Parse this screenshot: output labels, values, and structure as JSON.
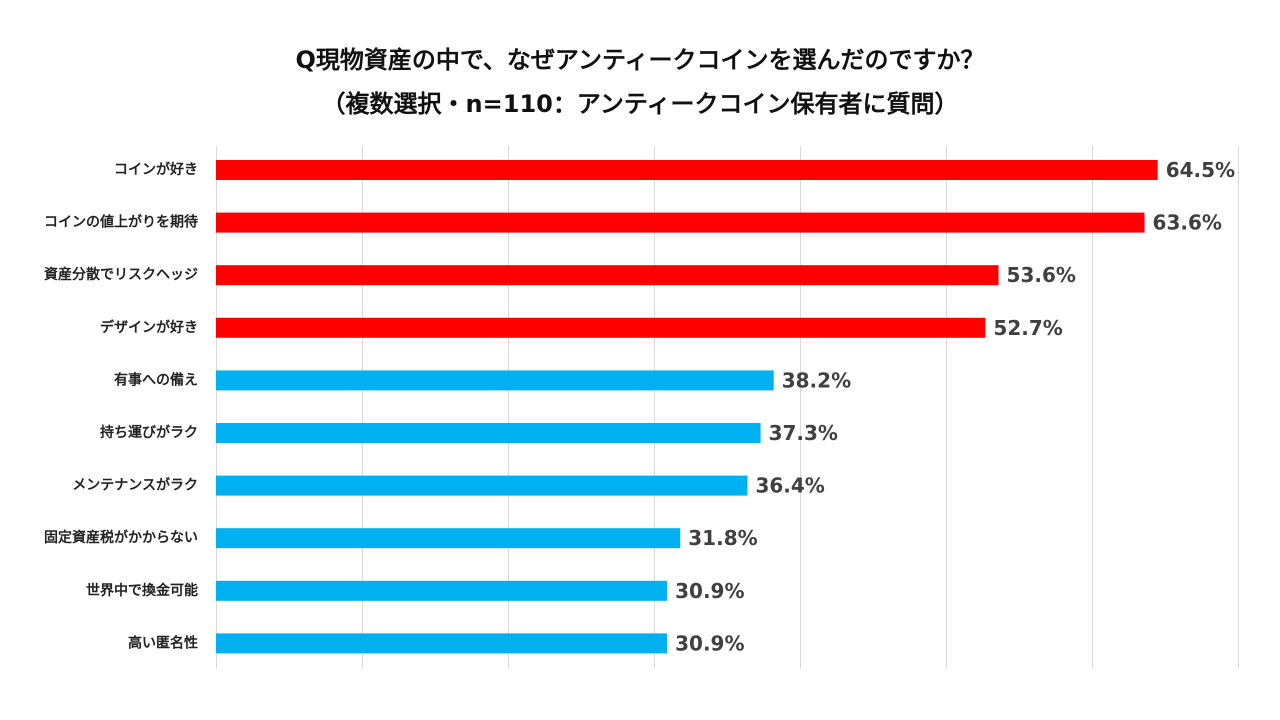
{
  "chart_data": {
    "type": "bar",
    "orientation": "horizontal",
    "title": "Q現物資産の中で、なぜアンティークコインを選んだのですか？",
    "subtitle": "（複数選択・n=110：アンティークコイン保有者に質問）",
    "categories": [
      "コインが好き",
      "コインの値上がりを期待",
      "資産分散でリスクヘッジ",
      "デザインが好き",
      "有事への備え",
      "持ち運びがラク",
      "メンテナンスがラク",
      "固定資産税がかからない",
      "世界中で換金可能",
      "高い匿名性"
    ],
    "values": [
      64.5,
      63.6,
      53.6,
      52.7,
      38.2,
      37.3,
      36.4,
      31.8,
      30.9,
      30.9
    ],
    "value_labels": [
      "64.5%",
      "63.6%",
      "53.6%",
      "52.7%",
      "38.2%",
      "37.3%",
      "36.4%",
      "31.8%",
      "30.9%",
      "30.9%"
    ],
    "highlight_count": 4,
    "colors": {
      "highlight": "#ff0000",
      "normal": "#00b0f0",
      "grid": "#d9d9d9"
    },
    "xlim": [
      0,
      70
    ],
    "grid": true,
    "legend": "none"
  }
}
